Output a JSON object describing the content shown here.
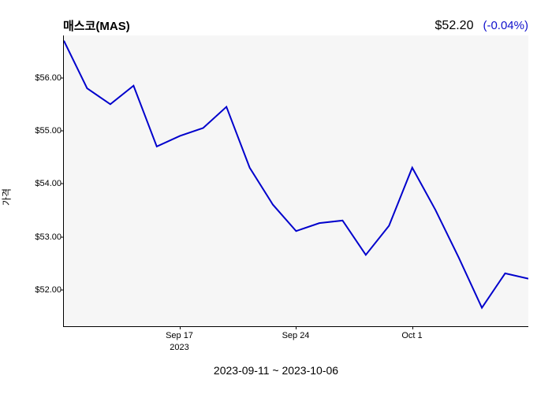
{
  "chart": {
    "type": "line",
    "title": "매스코(MAS)",
    "current_price": "$52.20",
    "price_change": "(-0.04%)",
    "y_axis_label": "가격",
    "date_range": "2023-09-11 ~ 2023-10-06",
    "background_color": "#ffffff",
    "plot_background": "#f6f6f6",
    "line_color": "#0000cc",
    "line_width": 2,
    "text_color": "#000000",
    "change_color": "#1010cc",
    "ylim": [
      51.3,
      56.8
    ],
    "y_ticks": [
      {
        "value": 52.0,
        "label": "$52.00"
      },
      {
        "value": 53.0,
        "label": "$53.00"
      },
      {
        "value": 54.0,
        "label": "$54.00"
      },
      {
        "value": 55.0,
        "label": "$55.00"
      },
      {
        "value": 56.0,
        "label": "$56.00"
      }
    ],
    "x_ticks": [
      {
        "index": 5,
        "label": "Sep 17",
        "year": "2023"
      },
      {
        "index": 10,
        "label": "Sep 24",
        "year": ""
      },
      {
        "index": 15,
        "label": "Oct 1",
        "year": ""
      }
    ],
    "data_points": [
      56.7,
      55.8,
      55.5,
      55.85,
      54.7,
      54.9,
      55.05,
      55.45,
      54.3,
      53.6,
      53.1,
      53.25,
      53.3,
      52.65,
      53.2,
      54.3,
      53.5,
      52.6,
      51.65,
      52.3,
      52.2
    ]
  }
}
